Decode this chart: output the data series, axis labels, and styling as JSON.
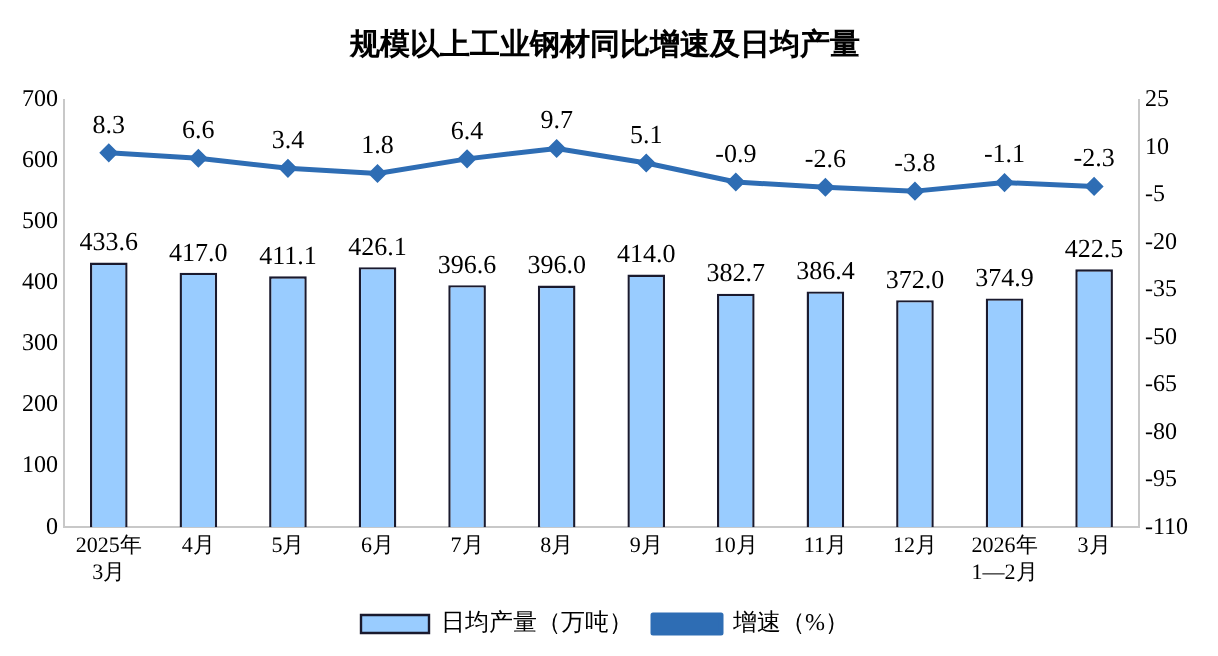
{
  "chart_data": {
    "type": "bar",
    "title": "规模以上工业钢材同比增速及日均产量",
    "categories": [
      "2025年\n3月",
      "4月",
      "5月",
      "6月",
      "7月",
      "8月",
      "9月",
      "10月",
      "11月",
      "12月",
      "2026年\n1—2月",
      "3月"
    ],
    "series": [
      {
        "name": "日均产量（万吨）",
        "color": "#99ccff",
        "values": [
          433.6,
          417,
          411.1,
          426.1,
          396.6,
          396,
          414,
          382.7,
          386.4,
          372,
          374.9,
          422.5
        ],
        "value_labels": [
          "433.6",
          "417.0",
          "411.1",
          "426.1",
          "396.6",
          "396.0",
          "414.0",
          "382.7",
          "386.4",
          "372.0",
          "374.9",
          "422.5"
        ]
      },
      {
        "name": "增速（%）",
        "type": "line",
        "axis": "y2",
        "color": "#2e6db4",
        "values": [
          8.3,
          6.6,
          3.4,
          1.8,
          6.4,
          9.7,
          5.1,
          -0.9,
          -2.6,
          -3.8,
          -1.1,
          -2.3
        ],
        "value_labels": [
          "8.3",
          "6.6",
          "3.4",
          "1.8",
          "6.4",
          "9.7",
          "5.1",
          "-0.9",
          "-2.6",
          "-3.8",
          "-1.1",
          "-2.3"
        ]
      }
    ],
    "ylim": [
      0,
      700
    ],
    "yticks": [
      0,
      100,
      200,
      300,
      400,
      500,
      600,
      700
    ],
    "y2lim": [
      -110,
      25
    ],
    "y2ticks": [
      -110,
      -95,
      -80,
      -65,
      -50,
      -35,
      -20,
      -5,
      10,
      25
    ],
    "grid": false,
    "legend": "bottom",
    "marker": "diamond",
    "line_style": "solid"
  }
}
